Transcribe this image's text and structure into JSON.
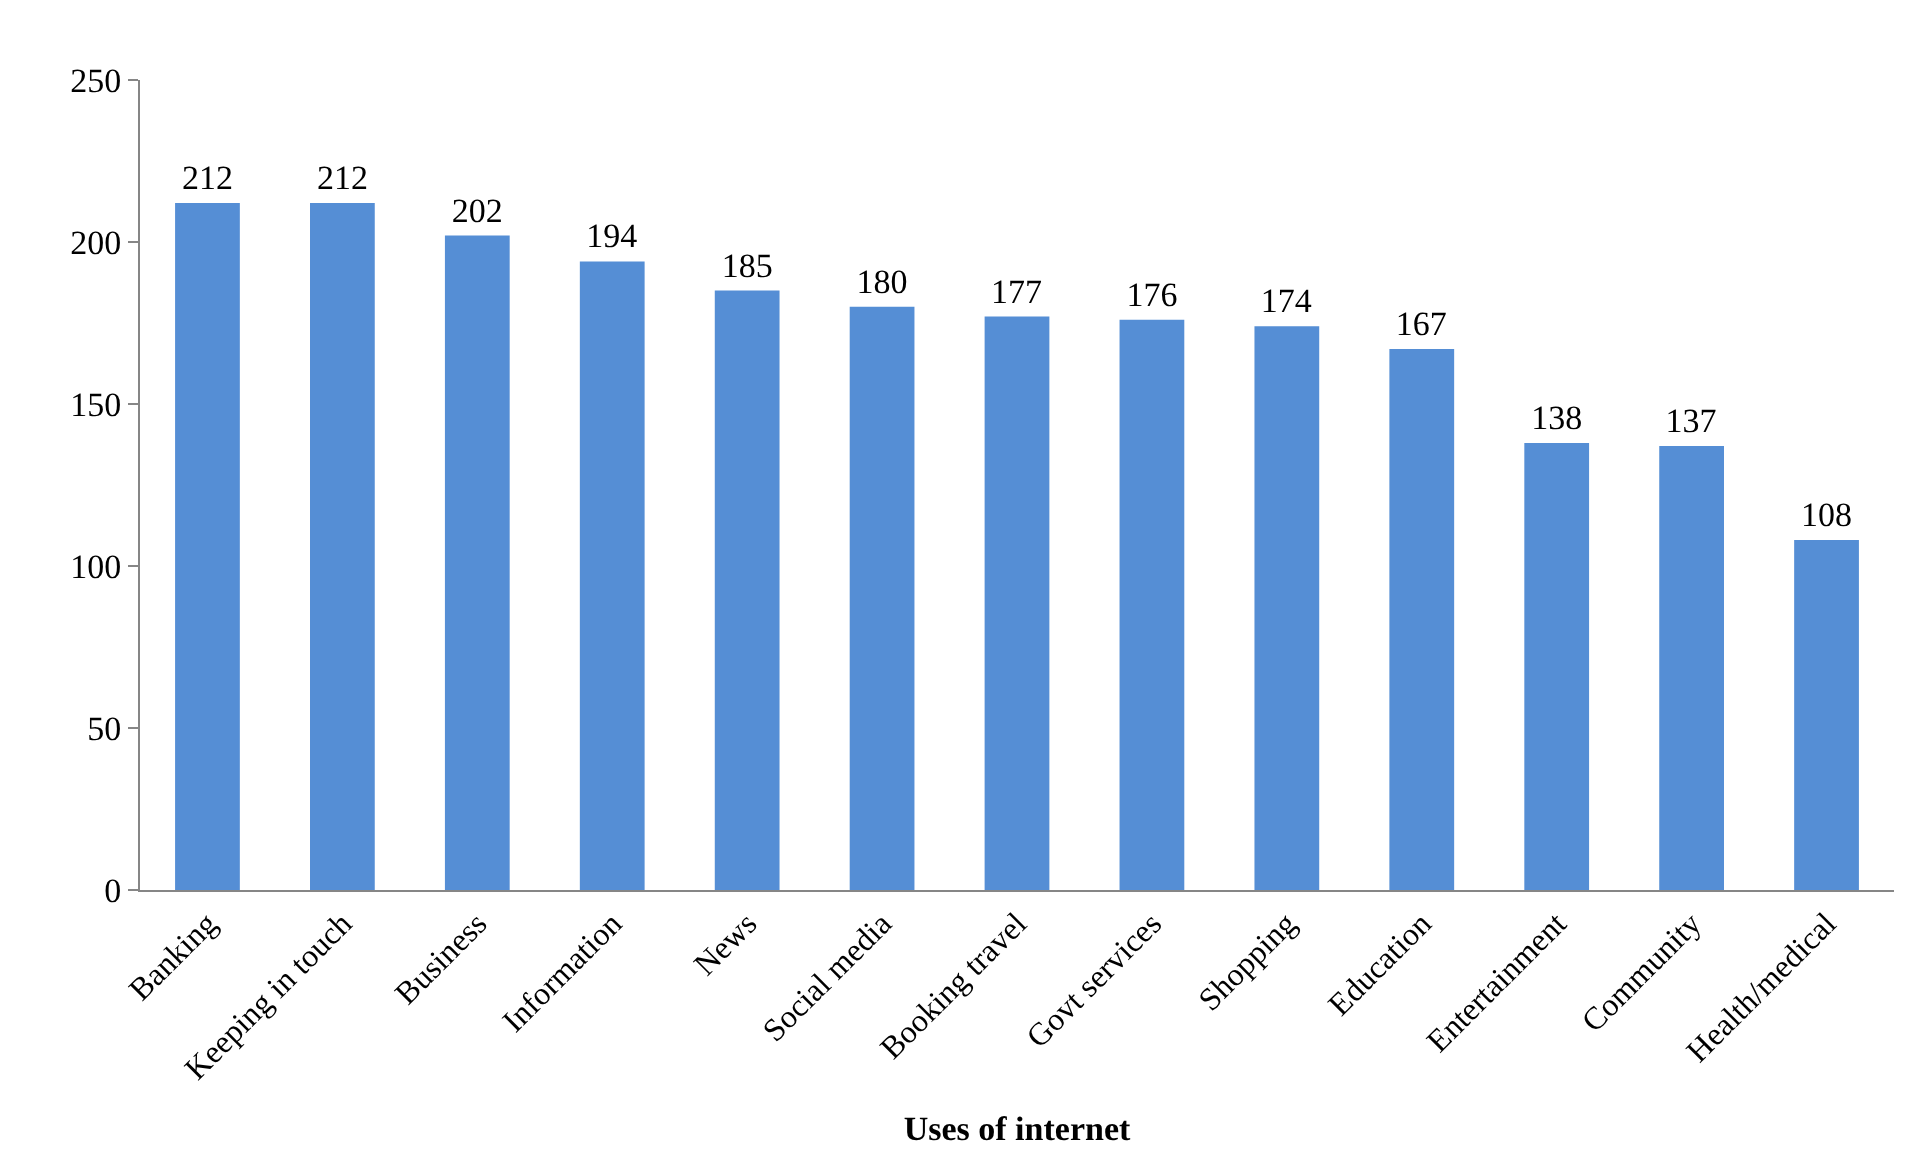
{
  "chart_data": {
    "type": "bar",
    "xlabel": "Uses of internet",
    "categories": [
      "Banking",
      "Keeping in touch",
      "Business",
      "Information",
      "News",
      "Social media",
      "Booking travel",
      "Govt services",
      "Shopping",
      "Education",
      "Entertainment",
      "Community",
      "Health/medical"
    ],
    "values": [
      212,
      212,
      202,
      194,
      185,
      180,
      177,
      176,
      174,
      167,
      138,
      137,
      108
    ],
    "color": "#558ed5",
    "ylim": [
      0,
      250
    ],
    "yticks": [
      0,
      50,
      100,
      150,
      200,
      250
    ],
    "grid": false,
    "legend": false,
    "data_labels": true
  }
}
